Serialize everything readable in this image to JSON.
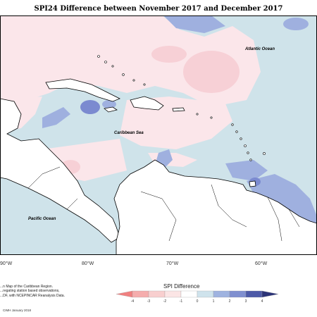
{
  "title": "SPI24 Difference between November 2017 and December 2017",
  "map_labels": {
    "atlantic": "Atlantic Ocean",
    "caribbean": "Caribbean Sea",
    "pacific": "Pacific Ocean"
  },
  "lon_labels": [
    "90°W",
    "80°W",
    "70°W",
    "60°W"
  ],
  "credit_lines": [
    "...n Map of the Caribbean Region.",
    "...regating station based observations,",
    "...DF, with NCEPINCAR Reanalysis Data."
  ],
  "credit_footer": "CIMH January 2018",
  "legend": {
    "title": "SPI Difference",
    "ticks": [
      "-4",
      "-3",
      "-2",
      "-1",
      "0",
      "1",
      "2",
      "3",
      "4"
    ],
    "colors": [
      "#f08080",
      "#f5adad",
      "#f8cfcf",
      "#fbe5e5",
      "#ffffff",
      "#cfe3ec",
      "#9fb3e0",
      "#7f8fd0",
      "#4d5aa8",
      "#2c3478"
    ]
  },
  "colors": {
    "pink_light": "#fbe6ea",
    "pink": "#f7d0d6",
    "blue_light": "#cfe3ea",
    "blue": "#9fb0df",
    "blue_dark": "#7b8ad0",
    "land": "#ffffff",
    "coast": "#000000"
  }
}
